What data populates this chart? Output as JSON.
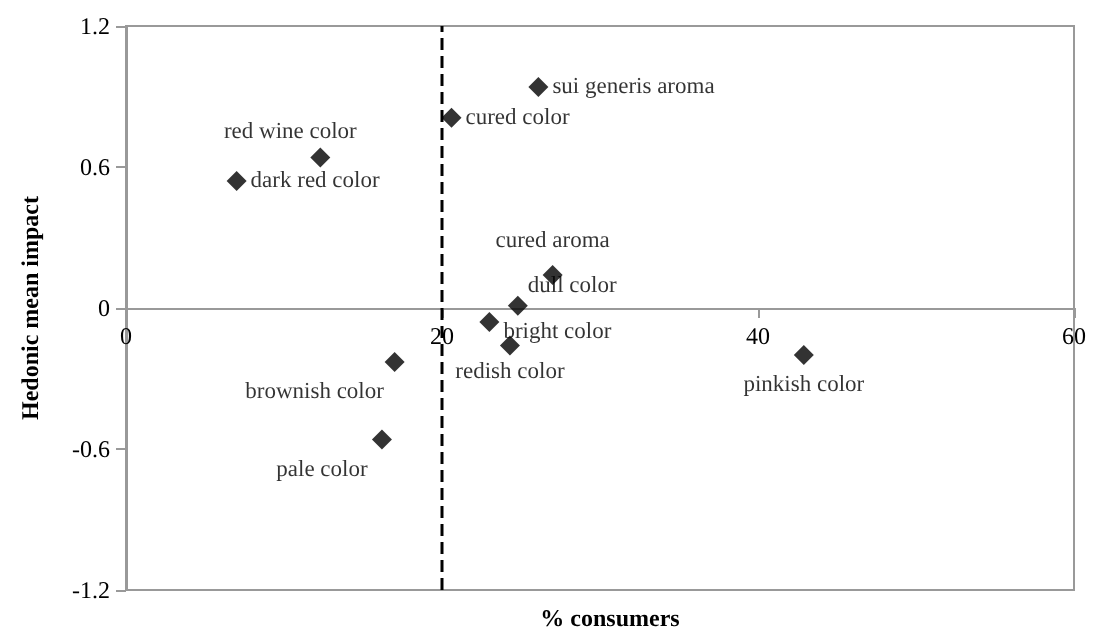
{
  "chart_data": {
    "type": "scatter",
    "xlabel": "% consumers",
    "ylabel": "Hedonic mean impact",
    "x": [
      26.1,
      20.6,
      12.3,
      7.0,
      27.0,
      24.8,
      23.0,
      24.3,
      17.0,
      42.9,
      16.2
    ],
    "series": [
      {
        "color": "#000000",
        "values": [
          0.94,
          0.81,
          0.64,
          0.54,
          0.14,
          0.01,
          -0.06,
          -0.16,
          -0.23,
          -0.2,
          -0.56
        ]
      }
    ],
    "marker": "diamond",
    "xlim": [
      0,
      60
    ],
    "xticks": [
      0,
      20,
      40,
      60
    ],
    "ylim": [
      -1.2,
      1.2
    ],
    "yticks": [
      -1.2,
      -0.6,
      0,
      0.6,
      1.2
    ],
    "grid": false,
    "ref_lines": [
      {
        "axis": "x",
        "value": 20,
        "line_style": "dashed",
        "color": "#000000"
      }
    ],
    "annotations": [
      {
        "text": "sui generis aroma",
        "x": 26.1,
        "y": 0.94
      },
      {
        "text": "cured color",
        "x": 20.6,
        "y": 0.81
      },
      {
        "text": "red wine color",
        "x": 12.3,
        "y": 0.64
      },
      {
        "text": "dark red color",
        "x": 7.0,
        "y": 0.54
      },
      {
        "text": "cured aroma",
        "x": 27.0,
        "y": 0.14
      },
      {
        "text": "dull color",
        "x": 24.8,
        "y": 0.01
      },
      {
        "text": "bright color",
        "x": 23.0,
        "y": -0.06
      },
      {
        "text": "redish color",
        "x": 24.3,
        "y": -0.16
      },
      {
        "text": "brownish color",
        "x": 17.0,
        "y": -0.23
      },
      {
        "text": "pinkish color",
        "x": 42.9,
        "y": -0.2
      },
      {
        "text": "pale color",
        "x": 16.2,
        "y": -0.56
      }
    ]
  }
}
